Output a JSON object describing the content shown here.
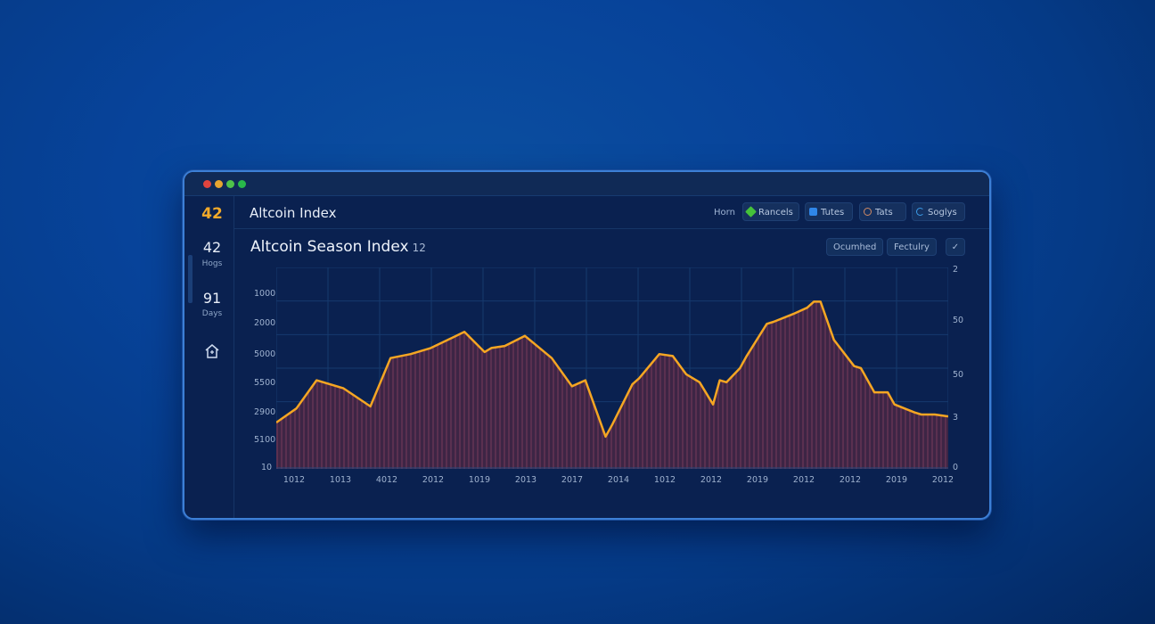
{
  "window": {
    "traffic_lights": [
      "#e0443e",
      "#e6a530",
      "#4fc24a",
      "#28b84a"
    ]
  },
  "sidebar": {
    "logo_value": "42",
    "items": [
      {
        "value": "42",
        "label": "Hogs"
      },
      {
        "value": "91",
        "label": "Days"
      },
      {
        "icon": "home-icon"
      }
    ]
  },
  "header": {
    "title": "Altcoin Index",
    "nav": {
      "home_label": "Horn",
      "buttons": [
        {
          "label": "Rancels",
          "icon": "green-diamond-icon",
          "icon_color": "#45c23a"
        },
        {
          "label": "Tutes",
          "icon": "blue-square-icon",
          "icon_color": "#2f86e8"
        },
        {
          "label": "Tats",
          "icon": "clock-icon",
          "icon_color": "#d08a64"
        },
        {
          "label": "Soglys",
          "icon": "refresh-icon",
          "icon_color": "#3a9be8"
        }
      ]
    }
  },
  "page": {
    "title": "Altcoin Season Index",
    "title_badge": "12",
    "filters": [
      {
        "label": "Ocumhed"
      },
      {
        "label": "Fectulry"
      },
      {
        "label": "✓"
      }
    ]
  },
  "chart_data": {
    "type": "area",
    "title": "Altcoin Season Index",
    "xlabel": "",
    "ylabel": "",
    "categories": [
      "1012",
      "1013",
      "4012",
      "2012",
      "1019",
      "2013",
      "2017",
      "2014",
      "1012",
      "2012",
      "2019",
      "2012",
      "2012",
      "2019",
      "2012"
    ],
    "left_axis_ticks": [
      "1000",
      "2000",
      "5000",
      "5500",
      "2900",
      "5100",
      "10"
    ],
    "right_axis_ticks": [
      "2",
      "50",
      "50",
      "3",
      "0"
    ],
    "grid": true,
    "line_color": "#f5a623",
    "fill_color": "#4a2a48",
    "series": [
      {
        "name": "Altcoin Season Index",
        "x_norm": [
          0,
          3,
          6,
          10,
          14,
          17,
          20,
          23,
          28,
          31,
          32,
          34,
          37,
          41,
          44,
          46,
          49,
          50,
          53,
          54,
          57,
          59,
          61,
          63,
          65,
          66,
          67,
          69,
          70,
          73,
          74,
          77,
          79,
          80,
          81,
          83,
          86,
          87,
          89,
          91,
          92,
          95,
          96,
          98,
          100
        ],
        "y_norm": [
          23,
          30,
          44,
          40,
          31,
          55,
          57,
          60,
          68,
          58,
          60,
          61,
          66,
          55,
          41,
          44,
          16,
          22,
          42,
          45,
          57,
          56,
          47,
          43,
          32,
          44,
          43,
          50,
          56,
          72,
          73,
          77,
          80,
          83,
          83,
          64,
          51,
          50,
          38,
          38,
          32,
          28,
          27,
          27,
          26
        ]
      }
    ]
  }
}
